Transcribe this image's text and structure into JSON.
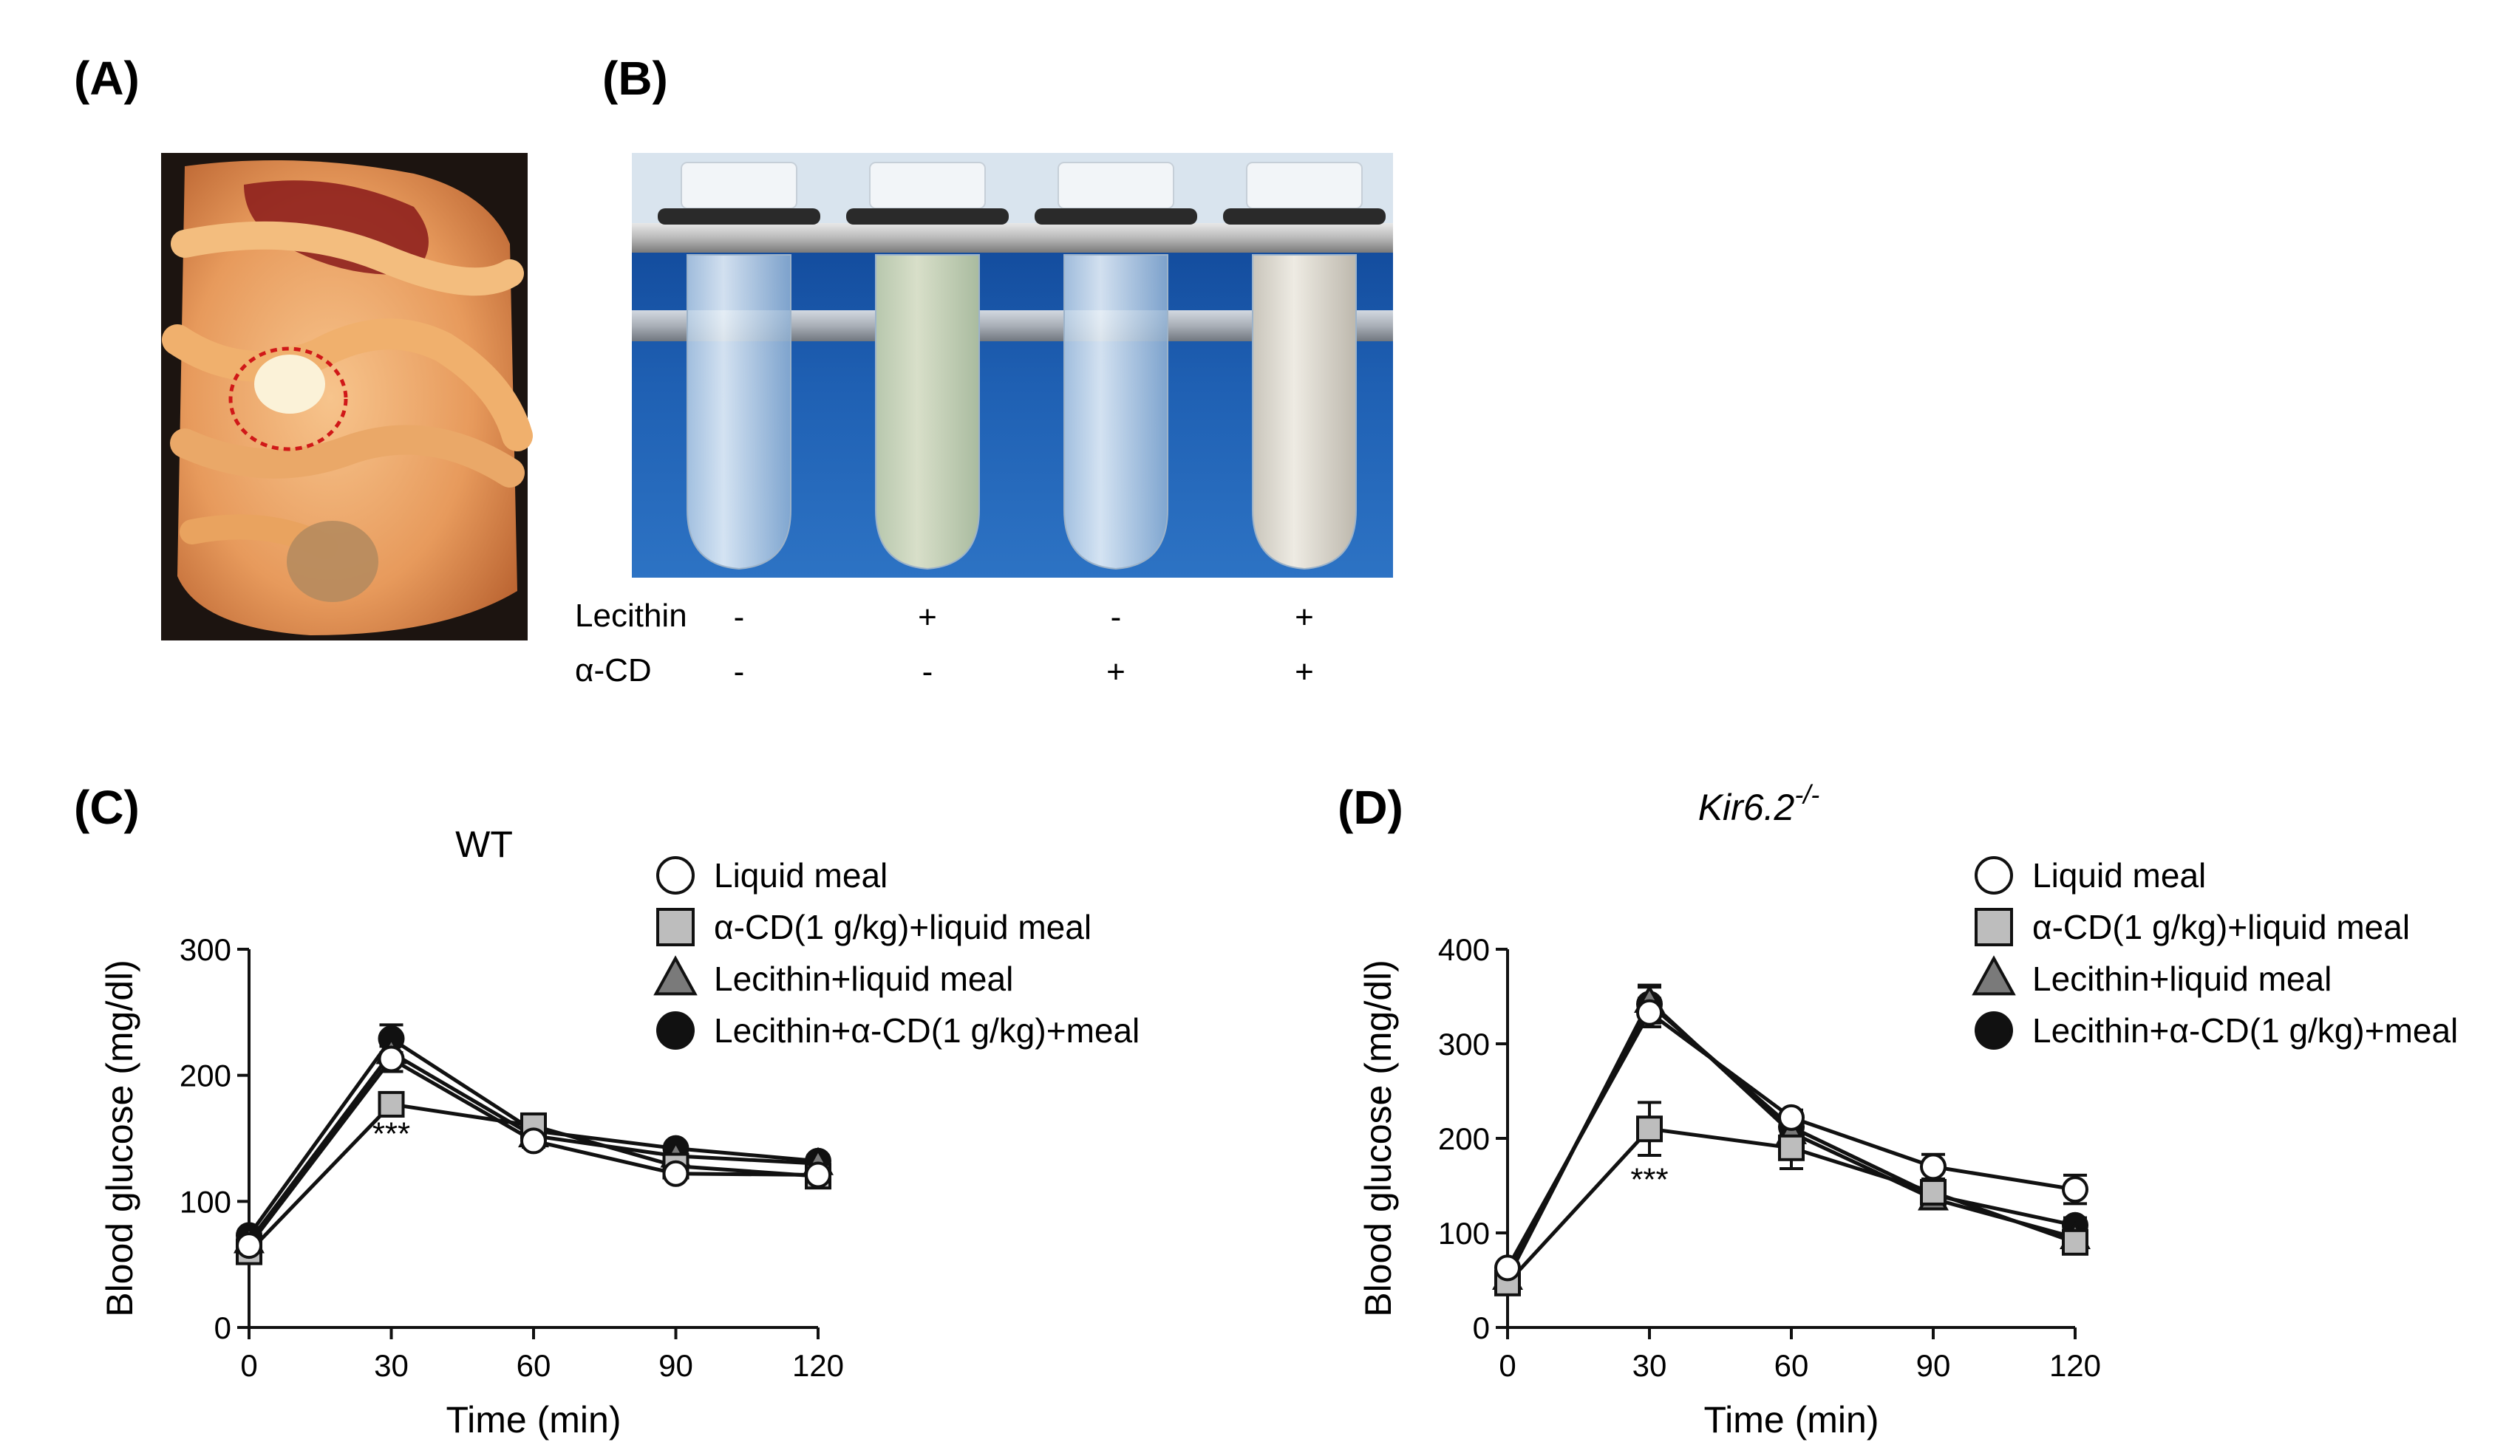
{
  "panels": {
    "a": {
      "label": "(A)"
    },
    "b": {
      "label": "(B)",
      "row1_label": "Lecithin",
      "row2_label": "α-CD",
      "tubes": [
        {
          "lecithin": "-",
          "acd": "-"
        },
        {
          "lecithin": "+",
          "acd": "-"
        },
        {
          "lecithin": "-",
          "acd": "+"
        },
        {
          "lecithin": "+",
          "acd": "+"
        }
      ]
    },
    "c": {
      "label": "(C)"
    },
    "d": {
      "label": "(D)"
    }
  },
  "legend": [
    {
      "name": "Liquid meal",
      "marker": "circle",
      "fill": "#ffffff"
    },
    {
      "name": "α-CD(1 g/kg)+liquid meal",
      "marker": "square",
      "fill": "#bdbdbd"
    },
    {
      "name": "Lecithin+liquid meal",
      "marker": "triangle",
      "fill": "#7a7a7a"
    },
    {
      "name": "Lecithin+α-CD(1 g/kg)+meal",
      "marker": "circle",
      "fill": "#111111"
    }
  ],
  "chart_data": [
    {
      "type": "line",
      "title": "WT",
      "xlabel": "Time (min)",
      "ylabel": "Blood glucose (mg/dl)",
      "x": [
        0,
        30,
        60,
        90,
        120
      ],
      "xticks": [
        "0",
        "30",
        "60",
        "90",
        "120"
      ],
      "xlim": [
        0,
        120
      ],
      "yticks": [
        "0",
        "100",
        "200",
        "300"
      ],
      "ylim": [
        0,
        300
      ],
      "annotation": {
        "text": "***",
        "x": 30,
        "y": 145
      },
      "series": [
        {
          "name": "Liquid meal",
          "values": [
            65,
            213,
            148,
            122,
            121
          ],
          "err": [
            4,
            10,
            5,
            4,
            4
          ]
        },
        {
          "name": "α-CD(1 g/kg)+liquid meal",
          "values": [
            60,
            177,
            160,
            128,
            120
          ],
          "err": [
            4,
            6,
            6,
            4,
            4
          ]
        },
        {
          "name": "Lecithin+liquid meal",
          "values": [
            68,
            218,
            152,
            136,
            130
          ],
          "err": [
            4,
            10,
            5,
            4,
            4
          ]
        },
        {
          "name": "Lecithin+α-CD(1 g/kg)+meal",
          "values": [
            73,
            229,
            156,
            142,
            132
          ],
          "err": [
            4,
            11,
            5,
            4,
            4
          ]
        }
      ]
    },
    {
      "type": "line",
      "title": "Kir6.2",
      "title_sup": "-/-",
      "xlabel": "Time (min)",
      "ylabel": "Blood glucose (mg/dl)",
      "x": [
        0,
        30,
        60,
        90,
        120
      ],
      "xticks": [
        "0",
        "30",
        "60",
        "90",
        "120"
      ],
      "xlim": [
        0,
        120
      ],
      "yticks": [
        "0",
        "100",
        "200",
        "300",
        "400"
      ],
      "ylim": [
        0,
        400
      ],
      "annotation": {
        "text": "***",
        "x": 30,
        "y": 145
      },
      "series": [
        {
          "name": "Liquid meal",
          "values": [
            63,
            333,
            222,
            170,
            146
          ],
          "err": [
            5,
            15,
            8,
            13,
            15
          ]
        },
        {
          "name": "α-CD(1 g/kg)+liquid meal",
          "values": [
            47,
            210,
            190,
            143,
            90
          ],
          "err": [
            5,
            28,
            22,
            12,
            7
          ]
        },
        {
          "name": "Lecithin+liquid meal",
          "values": [
            52,
            345,
            206,
            136,
            95
          ],
          "err": [
            5,
            15,
            8,
            8,
            7
          ]
        },
        {
          "name": "Lecithin+α-CD(1 g/kg)+meal",
          "values": [
            56,
            342,
            212,
            140,
            108
          ],
          "err": [
            5,
            20,
            8,
            8,
            8
          ]
        }
      ]
    }
  ]
}
